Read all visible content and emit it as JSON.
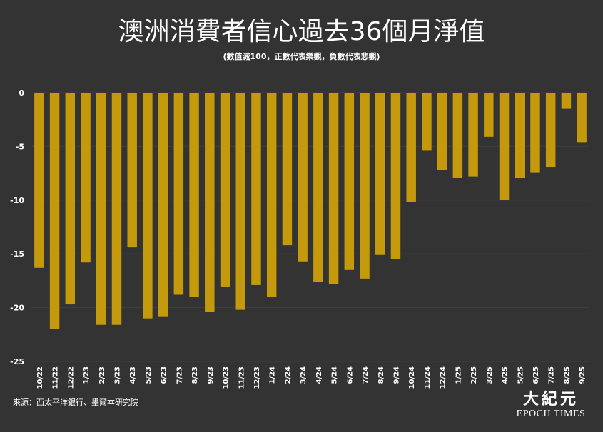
{
  "title": "澳洲消費者信心過去36個月淨值",
  "subtitle": "(數值減100，正數代表樂觀，負數代表悲觀)",
  "source": "來源：西太平洋銀行、墨爾本研究院",
  "logo": {
    "chinese": "大紀元",
    "english": "EPOCH TIMES"
  },
  "colors": {
    "background": "#333333",
    "bar": "#C49A0C",
    "text": "#ffffff"
  },
  "chart_data": {
    "type": "bar",
    "title": "澳洲消費者信心過去36個月淨值",
    "subtitle": "(數值減100，正數代表樂觀，負數代表悲觀)",
    "xlabel": "",
    "ylabel": "",
    "ylim": [
      -25,
      0
    ],
    "yticks": [
      0,
      -5,
      -10,
      -15,
      -20,
      -25
    ],
    "grid": true,
    "legend": "none",
    "categories": [
      "10/22",
      "11/22",
      "12/22",
      "1/23",
      "2/23",
      "3/23",
      "4/23",
      "5/23",
      "6/23",
      "7/23",
      "8/23",
      "9/23",
      "10/23",
      "11/23",
      "12/23",
      "1/24",
      "2/24",
      "3/24",
      "4/24",
      "5/24",
      "6/24",
      "7/24",
      "8/24",
      "9/24",
      "10/24",
      "11/24",
      "12/24",
      "1/25",
      "2/25",
      "3/25",
      "4/25",
      "5/25",
      "6/25",
      "7/25",
      "8/25",
      "9/25"
    ],
    "values": [
      -16.3,
      -22.0,
      -19.7,
      -15.8,
      -21.6,
      -21.6,
      -14.4,
      -21.0,
      -20.8,
      -18.8,
      -19.0,
      -20.4,
      -18.1,
      -20.2,
      -17.9,
      -19.0,
      -14.2,
      -15.7,
      -17.6,
      -17.8,
      -16.5,
      -17.3,
      -15.1,
      -15.5,
      -10.2,
      -5.4,
      -7.2,
      -7.9,
      -7.8,
      -4.1,
      -10.0,
      -7.9,
      -7.4,
      -6.9,
      -1.5,
      -4.6
    ]
  }
}
